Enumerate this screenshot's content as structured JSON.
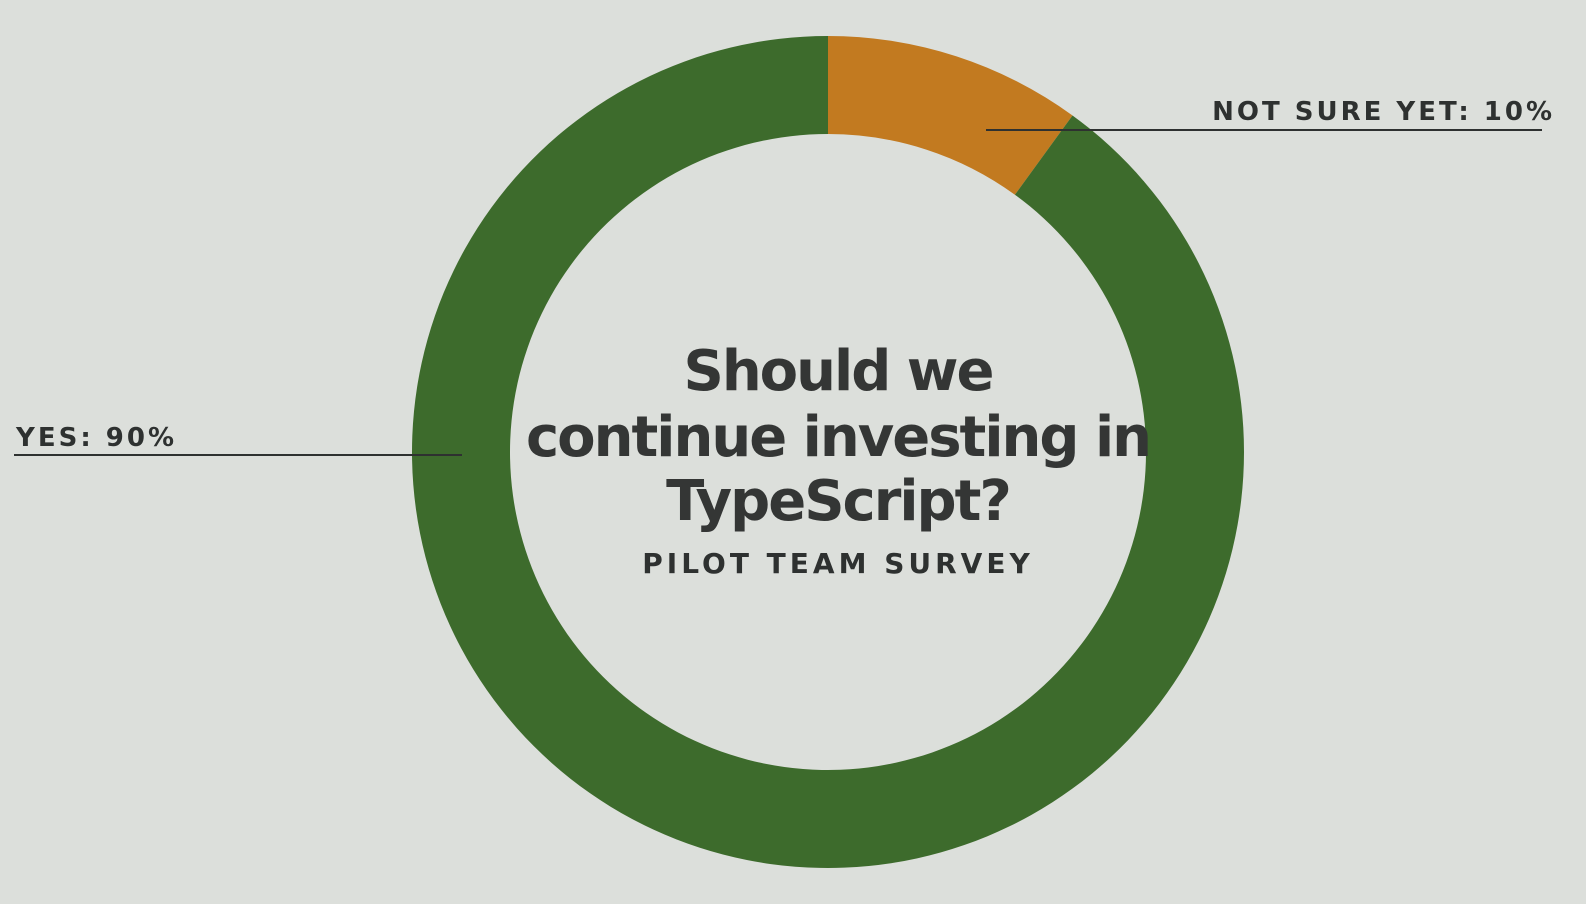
{
  "chart_data": {
    "type": "pie",
    "variant": "donut",
    "title_lines": [
      "Should we",
      "continue investing in",
      "TypeScript?"
    ],
    "subtitle": "PILOT TEAM SURVEY",
    "slices": [
      {
        "label": "NOT SURE YET: 10%",
        "value": 10,
        "color": "#c27a20"
      },
      {
        "label": "YES: 90%",
        "value": 90,
        "color": "#3d6b2c"
      }
    ],
    "start_angle": "12 o'clock",
    "direction": "clockwise"
  },
  "colors": {
    "background": "#dcdfdb",
    "yes": "#3d6b2c",
    "not_sure": "#c27a20",
    "text": "#2e3130"
  }
}
